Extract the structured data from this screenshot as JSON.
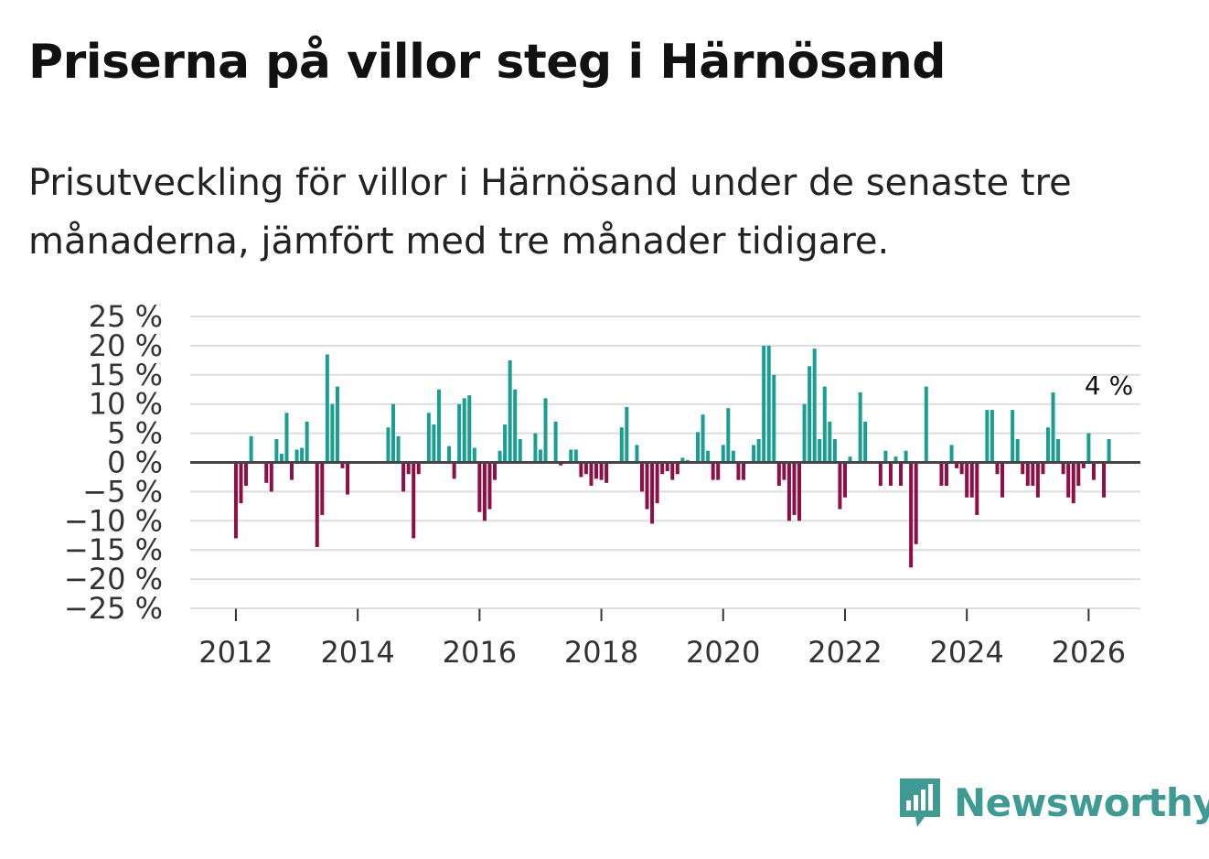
{
  "title": "Priserna på villor steg i Härnösand",
  "subtitle": "Prisutveckling för villor i Härnösand under de senaste tre månaderna, jämfört med tre månader tidigare.",
  "brand": {
    "name": "Newsworthy"
  },
  "colors": {
    "positive": "#1a9e92",
    "negative": "#8e0e45",
    "grid": "#dddddd",
    "zero": "#444444",
    "brand": "#3f9a93"
  },
  "chart_data": {
    "type": "bar",
    "ylabel": "",
    "ylim": [
      -25,
      25
    ],
    "yticks": [
      25,
      20,
      15,
      10,
      5,
      0,
      -5,
      -10,
      -15,
      -20,
      -25
    ],
    "ytick_labels": [
      "25 %",
      "20 %",
      "15 %",
      "10 %",
      "5 %",
      "0 %",
      "−5 %",
      "−10 %",
      "−15 %",
      "−20 %",
      "−25 %"
    ],
    "xlim": [
      2011.25,
      2026.85
    ],
    "xticks": [
      2012,
      2014,
      2016,
      2018,
      2020,
      2022,
      2024,
      2026
    ],
    "xtick_labels": [
      "2012",
      "2014",
      "2016",
      "2018",
      "2020",
      "2022",
      "2024",
      "2026"
    ],
    "annotation": {
      "text": "4 %",
      "value": 4
    },
    "x_start": 2012,
    "values": [
      -13,
      -7,
      -4,
      4.5,
      0,
      0,
      -3.5,
      -5,
      4,
      1.5,
      8.5,
      -3,
      2.2,
      2.5,
      7,
      0,
      -14.5,
      -9,
      18.5,
      10,
      13,
      -1,
      -5.5,
      0,
      0,
      0,
      0,
      0,
      0,
      0,
      6,
      10,
      4.5,
      -5,
      -2,
      -13,
      -2,
      0,
      8.5,
      6.5,
      12.5,
      0,
      2.8,
      -2.8,
      10,
      11,
      11.5,
      2.5,
      -8.5,
      -10,
      -8,
      -3,
      2,
      6.5,
      17.5,
      12.5,
      4,
      0,
      0,
      5,
      2.2,
      11,
      0,
      7,
      -0.5,
      0,
      2.2,
      2.2,
      -2.5,
      -2,
      -4,
      -2.8,
      -3,
      -3.5,
      0,
      0,
      6,
      9.5,
      0,
      3,
      -5,
      -8,
      -10.5,
      -7,
      -2,
      -1.5,
      -3,
      -2,
      0.8,
      0.4,
      0,
      5.2,
      8.2,
      2,
      -3,
      -3,
      3,
      9.3,
      2,
      -3,
      -3,
      0,
      3,
      4,
      20,
      20,
      15,
      -4,
      -3,
      -10,
      -9,
      -10,
      10,
      16.5,
      19.5,
      4,
      13,
      7,
      4,
      -8,
      -6,
      1,
      0,
      12,
      7,
      0,
      0,
      -4,
      2,
      -4,
      1,
      -4,
      2,
      -18,
      -14,
      0,
      13,
      0,
      0,
      -4,
      -4,
      3,
      -1,
      -2,
      -6,
      -6,
      -9,
      0,
      9,
      9,
      -2,
      -6,
      0,
      9,
      4,
      -2,
      -4,
      -4,
      -6,
      -2,
      6,
      12,
      4,
      -2,
      -6,
      -7,
      -4,
      -1,
      5,
      -3,
      0,
      -6,
      4
    ]
  }
}
